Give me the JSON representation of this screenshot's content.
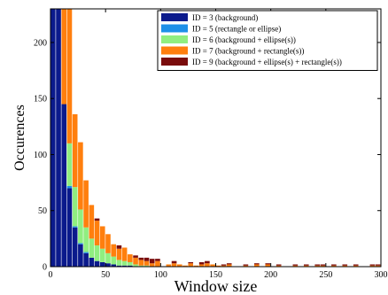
{
  "chart_data": {
    "type": "bar",
    "stacked": true,
    "xlabel": "Window size",
    "ylabel": "Occurences",
    "xlim": [
      0,
      300
    ],
    "ylim": [
      0,
      230
    ],
    "xticks": [
      0,
      50,
      100,
      150,
      200,
      250,
      300
    ],
    "yticks": [
      0,
      50,
      100,
      150,
      200
    ],
    "bin_width": 5,
    "grid": false,
    "legend_position": "top-right",
    "x": [
      5,
      10,
      15,
      20,
      25,
      30,
      35,
      40,
      45,
      50,
      55,
      60,
      65,
      70,
      75,
      80,
      85,
      90,
      95,
      100,
      105,
      110,
      115,
      120,
      125,
      130,
      135,
      140,
      145,
      150,
      155,
      160,
      165,
      170,
      175,
      180,
      185,
      190,
      195,
      200,
      205,
      210,
      215,
      220,
      225,
      230,
      235,
      240,
      245,
      250,
      255,
      260,
      265,
      270,
      275,
      280,
      285,
      290,
      295,
      300
    ],
    "series": [
      {
        "name": "ID = 3 (background)",
        "color": "#0b1a8c",
        "values": [
          230,
          230,
          145,
          70,
          35,
          20,
          12,
          8,
          5,
          4,
          3,
          2,
          1,
          1,
          1,
          0,
          0,
          0,
          0,
          0,
          0,
          0,
          0,
          0,
          0,
          0,
          0,
          0,
          0,
          0,
          0,
          0,
          0,
          0,
          0,
          0,
          0,
          0,
          0,
          0,
          0,
          0,
          0,
          0,
          0,
          0,
          0,
          0,
          0,
          0,
          0,
          0,
          0,
          0,
          0,
          0,
          0,
          0,
          0,
          0
        ]
      },
      {
        "name": "ID = 5 (rectangle or ellipse)",
        "color": "#1e90e8",
        "values": [
          0,
          0,
          0,
          2,
          1,
          1,
          1,
          0,
          0,
          0,
          0,
          0,
          0,
          0,
          0,
          0,
          0,
          0,
          0,
          0,
          0,
          0,
          0,
          0,
          0,
          0,
          0,
          0,
          0,
          0,
          0,
          0,
          0,
          0,
          0,
          0,
          0,
          0,
          0,
          0,
          0,
          0,
          0,
          0,
          0,
          0,
          0,
          0,
          0,
          0,
          0,
          0,
          0,
          0,
          0,
          0,
          0,
          0,
          0,
          0
        ]
      },
      {
        "name": "ID = 6 (background + ellipse(s))",
        "color": "#90ee80",
        "values": [
          0,
          0,
          0,
          38,
          35,
          30,
          22,
          17,
          14,
          12,
          9,
          7,
          5,
          4,
          3,
          2,
          1,
          1,
          0,
          0,
          0,
          0,
          0,
          0,
          0,
          0,
          0,
          0,
          0,
          0,
          0,
          0,
          0,
          0,
          0,
          0,
          0,
          0,
          0,
          0,
          0,
          0,
          0,
          0,
          0,
          0,
          0,
          0,
          0,
          0,
          0,
          0,
          0,
          0,
          0,
          0,
          0,
          0,
          0,
          0
        ]
      },
      {
        "name": "ID = 7 (background + rectangle(s))",
        "color": "#ff7f0e",
        "values": [
          0,
          0,
          90,
          128,
          65,
          60,
          42,
          30,
          22,
          20,
          17,
          11,
          10,
          12,
          7,
          6,
          5,
          4,
          3,
          5,
          0,
          2,
          3,
          2,
          1,
          3,
          1,
          2,
          3,
          2,
          1,
          1,
          2,
          0,
          0,
          1,
          0,
          2,
          0,
          2,
          0,
          1,
          0,
          0,
          1,
          0,
          1,
          0,
          1,
          1,
          0,
          1,
          0,
          1,
          0,
          1,
          0,
          0,
          1,
          1
        ]
      },
      {
        "name": "ID = 9 (background + ellipse(s) + rectangle(s))",
        "color": "#7a0c0c",
        "values": [
          0,
          0,
          0,
          0,
          0,
          0,
          0,
          0,
          2,
          0,
          0,
          0,
          3,
          0,
          0,
          2,
          2,
          3,
          4,
          2,
          0,
          0,
          2,
          0,
          0,
          1,
          0,
          2,
          2,
          0,
          0,
          1,
          1,
          0,
          0,
          1,
          0,
          1,
          0,
          1,
          0,
          1,
          0,
          0,
          1,
          0,
          1,
          0,
          1,
          1,
          0,
          1,
          0,
          1,
          0,
          1,
          0,
          0,
          1,
          1
        ]
      }
    ]
  }
}
